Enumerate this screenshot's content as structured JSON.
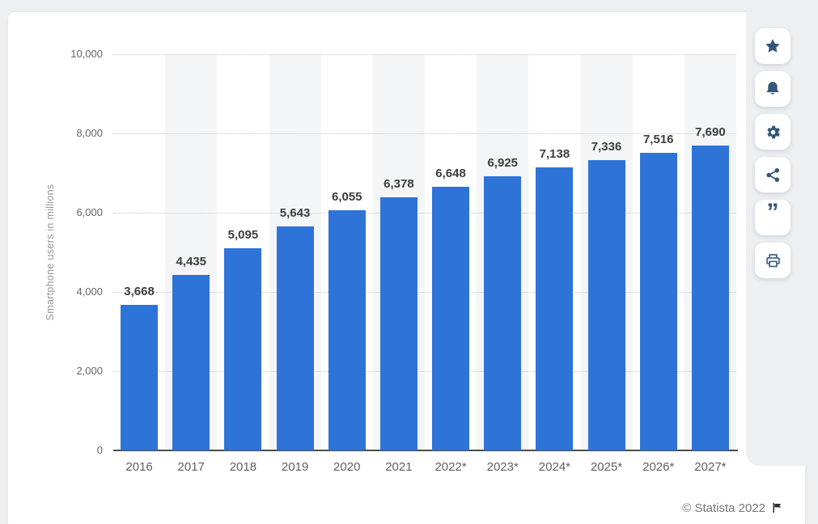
{
  "chart_data": {
    "type": "bar",
    "title": "",
    "categories": [
      "2016",
      "2017",
      "2018",
      "2019",
      "2020",
      "2021",
      "2022*",
      "2023*",
      "2024*",
      "2025*",
      "2026*",
      "2027*"
    ],
    "values": [
      3668,
      4435,
      5095,
      5643,
      6055,
      6378,
      6648,
      6925,
      7138,
      7336,
      7516,
      7690
    ],
    "value_labels": [
      "3,668",
      "4,435",
      "5,095",
      "5,643",
      "6,055",
      "6,378",
      "6,648",
      "6,925",
      "7,138",
      "7,336",
      "7,516",
      "7,690"
    ],
    "xlabel": "",
    "ylabel": "Smartphone users in millions",
    "ylim": [
      0,
      10000
    ],
    "yticks": [
      0,
      2000,
      4000,
      6000,
      8000,
      10000
    ],
    "ytick_labels": [
      "0",
      "2,000",
      "4,000",
      "6,000",
      "8,000",
      "10,000"
    ],
    "grid": "horizontal-dotted",
    "legend": "none",
    "alternating_bands": true,
    "bar_color": "#2e73d8",
    "band_color": "#f4f5f7"
  },
  "toolbar": {
    "buttons": [
      {
        "label": "favorite",
        "icon": "star-icon"
      },
      {
        "label": "notifications",
        "icon": "bell-icon"
      },
      {
        "label": "settings",
        "icon": "gear-icon"
      },
      {
        "label": "share",
        "icon": "share-icon"
      },
      {
        "label": "cite",
        "icon": "quote-icon"
      },
      {
        "label": "print",
        "icon": "printer-icon"
      }
    ],
    "cite_glyph": "”"
  },
  "footer": {
    "copyright": "© Statista 2022",
    "flag_icon": "flag-icon"
  },
  "colors": {
    "page_background": "#edeff1",
    "bar": "#2e73d8",
    "icon": "#35567a",
    "axis_text": "#666666",
    "value_text": "#3d3d3d",
    "copyright_text": "#757575"
  }
}
